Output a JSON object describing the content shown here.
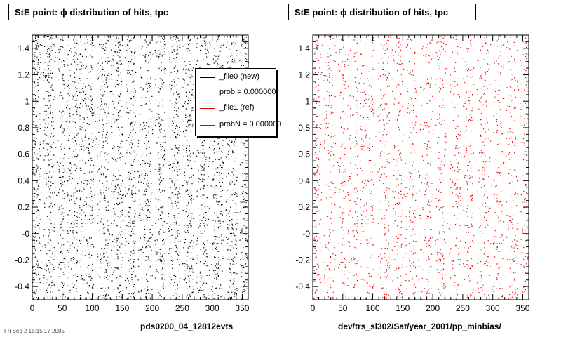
{
  "chart_data": [
    {
      "type": "scatter",
      "title": "StE point:  ϕ distribution of hits, tpc",
      "xlabel": "pds0200_04_12812evts",
      "ylabel": "",
      "xlim": [
        0,
        360
      ],
      "ylim": [
        -0.5,
        1.5
      ],
      "x_ticks": [
        "0",
        "50",
        "100",
        "150",
        "200",
        "250",
        "300",
        "350"
      ],
      "y_ticks": [
        "-0.4",
        "-0.2",
        "-0",
        "0.2",
        "0.4",
        "0.6",
        "0.8",
        "1",
        "1.2",
        "1.4"
      ],
      "grid": false,
      "color": "#000000",
      "marker": "dot",
      "density": 0.62,
      "gaps": [
        [
          14,
          18
        ],
        [
          38,
          41
        ],
        [
          54,
          57
        ],
        [
          75,
          78
        ],
        [
          102,
          107
        ],
        [
          128,
          131
        ],
        [
          150,
          154
        ],
        [
          172,
          176
        ],
        [
          200,
          204
        ],
        [
          222,
          226
        ],
        [
          246,
          250
        ],
        [
          268,
          273
        ],
        [
          296,
          300
        ],
        [
          318,
          322
        ],
        [
          341,
          345
        ]
      ],
      "legend": {
        "placement": "top-right",
        "entries": [
          {
            "label": "_file0 (new)",
            "color": "#000000"
          },
          {
            "label": "prob = 0.000000",
            "color": "#000000"
          },
          {
            "label": "_file1 (ref)",
            "color": "#e00000"
          },
          {
            "label": "probN = 0.000000",
            "color": "#e00000"
          }
        ]
      }
    },
    {
      "type": "scatter",
      "title": "StE point:  ϕ distribution of hits, tpc",
      "xlabel": "dev/trs_sl302/Sat/year_2001/pp_minbias/",
      "ylabel": "",
      "xlim": [
        0,
        360
      ],
      "ylim": [
        -0.5,
        1.5
      ],
      "x_ticks": [
        "0",
        "50",
        "100",
        "150",
        "200",
        "250",
        "300",
        "350"
      ],
      "y_ticks": [
        "-0.4",
        "-0.2",
        "-0",
        "0.2",
        "0.4",
        "0.6",
        "0.8",
        "1",
        "1.2",
        "1.4"
      ],
      "grid": false,
      "color": "#e00000",
      "marker": "dot",
      "density": 0.5,
      "gaps": [
        [
          14,
          18
        ],
        [
          38,
          41
        ],
        [
          54,
          57
        ],
        [
          75,
          78
        ],
        [
          102,
          108
        ],
        [
          128,
          131
        ],
        [
          150,
          154
        ],
        [
          172,
          176
        ],
        [
          200,
          204
        ],
        [
          222,
          226
        ],
        [
          246,
          250
        ],
        [
          268,
          273
        ],
        [
          296,
          300
        ],
        [
          318,
          322
        ],
        [
          341,
          345
        ]
      ]
    }
  ],
  "footer": {
    "stamp": "Fri Sep  2 15:15:17 2005"
  }
}
